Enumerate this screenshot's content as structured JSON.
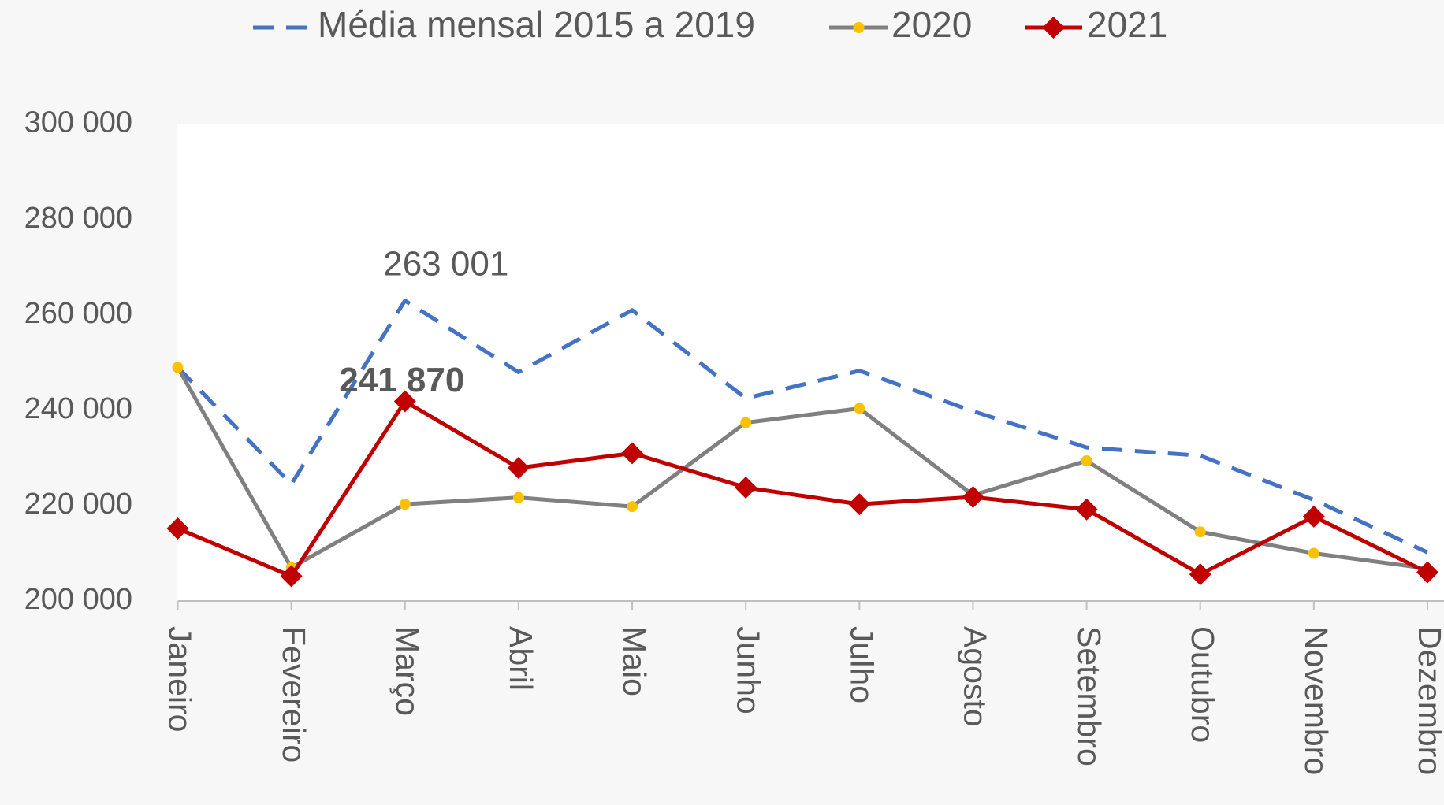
{
  "chart_data": {
    "type": "line",
    "categories": [
      "Janeiro",
      "Fevereiro",
      "Março",
      "Abril",
      "Maio",
      "Junho",
      "Julho",
      "Agosto",
      "Setembro",
      "Outubro",
      "Novembro",
      "Dezembro"
    ],
    "series": [
      {
        "name": "Média mensal 2015 a 2019",
        "color": "#4472c4",
        "dashed": true,
        "marker": null,
        "values": [
          249000,
          224500,
          263001,
          248000,
          261000,
          242500,
          248300,
          239800,
          232200,
          230500,
          221200,
          210200
        ],
        "value_labels": [
          null,
          null,
          "263 001",
          null,
          null,
          null,
          null,
          null,
          null,
          null,
          null,
          null
        ]
      },
      {
        "name": "2020",
        "color": "#808080",
        "marker_color": "#ffc000",
        "marker": "circle",
        "values": [
          249000,
          207000,
          220300,
          221700,
          219800,
          237400,
          240400,
          222200,
          229400,
          214500,
          210000,
          206800
        ]
      },
      {
        "name": "2021",
        "color": "#c00000",
        "marker_color": "#c00000",
        "marker": "diamond",
        "values": [
          215200,
          205200,
          241870,
          227900,
          231000,
          223800,
          220300,
          221800,
          219200,
          205600,
          217700,
          206000
        ],
        "value_labels": [
          null,
          null,
          "241 870",
          null,
          null,
          null,
          null,
          null,
          null,
          null,
          null,
          null
        ]
      }
    ],
    "ylim": [
      200000,
      300000
    ],
    "yticks": [
      {
        "value": 200000,
        "label": "200 000"
      },
      {
        "value": 220000,
        "label": "220 000"
      },
      {
        "value": 240000,
        "label": "240 000"
      },
      {
        "value": 260000,
        "label": "260 000"
      },
      {
        "value": 280000,
        "label": "280 000"
      },
      {
        "value": 300000,
        "label": "300 000"
      }
    ],
    "grid": false,
    "legend": "top"
  }
}
